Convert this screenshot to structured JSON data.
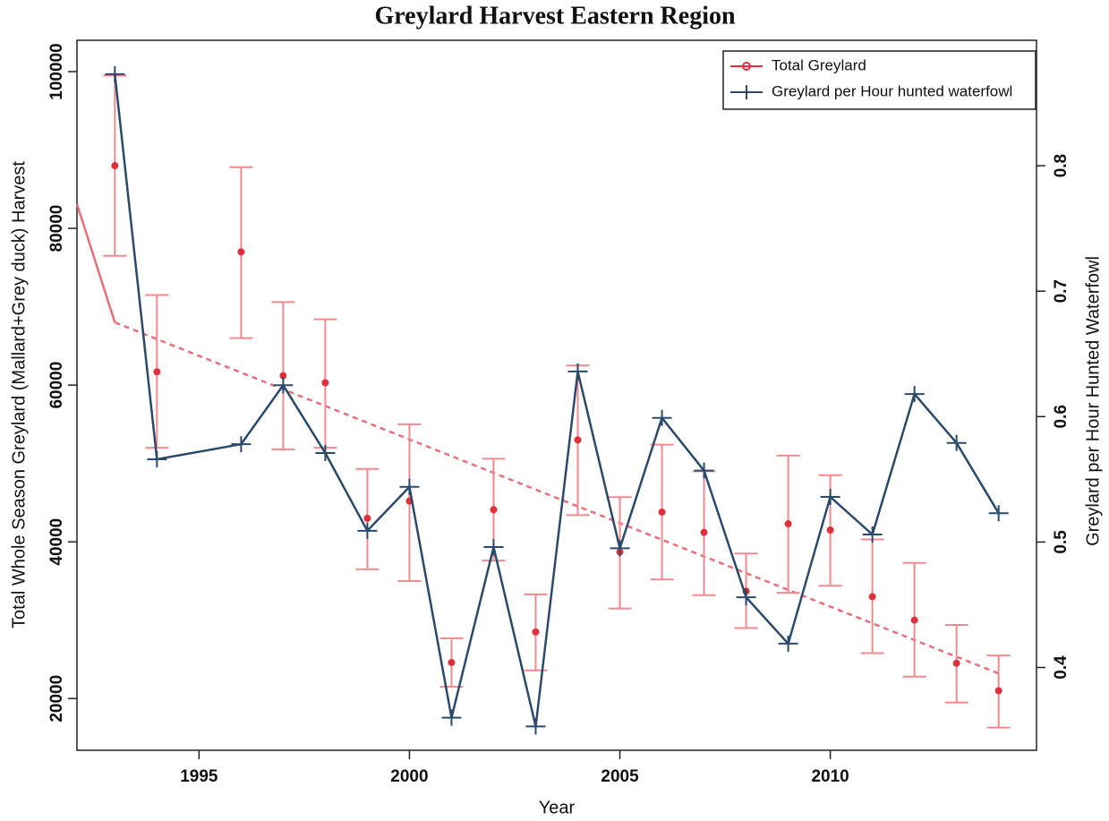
{
  "chart_data": {
    "type": "line",
    "title": "Greylard Harvest Eastern Region",
    "x_label": "Year",
    "y_label": "Total Whole Season Greylard (Mallard+Grey duck) Harvest",
    "y2_label": "Greylard per Hour Hunted Waterfowl",
    "x": [
      1993,
      1994,
      1996,
      1997,
      1998,
      1999,
      2000,
      2001,
      2002,
      2003,
      2004,
      2005,
      2006,
      2007,
      2008,
      2009,
      2010,
      2011,
      2012,
      2013,
      2014
    ],
    "series": [
      {
        "name": "Total Greylard",
        "color": "#e0303a",
        "values": [
          88000,
          61700,
          77000,
          61200,
          60300,
          43000,
          45200,
          24600,
          44100,
          28500,
          53000,
          38700,
          43800,
          41200,
          33700,
          42300,
          41500,
          33000,
          30000,
          24500,
          21000
        ],
        "lower": [
          76500,
          52000,
          66000,
          51800,
          52000,
          36500,
          35000,
          21500,
          37600,
          23600,
          43400,
          31500,
          35200,
          33200,
          29000,
          33500,
          34400,
          25800,
          22800,
          19500,
          16300
        ],
        "upper": [
          99500,
          71500,
          87800,
          70600,
          68400,
          49300,
          55000,
          27700,
          50600,
          33300,
          62500,
          45700,
          52400,
          49000,
          38500,
          51000,
          48500,
          40300,
          37300,
          29400,
          25500
        ]
      },
      {
        "name": "Greylard per Hour hunted waterfowl",
        "color": "#2b4a6b",
        "axis": "y2",
        "values": [
          0.873,
          0.566,
          0.578,
          0.625,
          0.571,
          0.509,
          0.544,
          0.36,
          0.496,
          0.353,
          0.636,
          0.495,
          0.599,
          0.557,
          0.456,
          0.419,
          0.536,
          0.506,
          0.618,
          0.579,
          0.523
        ]
      }
    ],
    "trend": {
      "color": "#e8707a",
      "x": [
        1992.1,
        1993,
        2014
      ],
      "values": [
        83100,
        68000,
        23200
      ]
    },
    "xlim": [
      1992.1,
      2014.9
    ],
    "xticks": [
      1995,
      2000,
      2005,
      2010
    ],
    "ylim": [
      13400,
      104000
    ],
    "yticks": [
      20000,
      40000,
      60000,
      80000,
      100000
    ],
    "y2lim": [
      0.334,
      0.9
    ],
    "y2ticks": [
      0.4,
      0.5,
      0.6,
      0.7,
      0.8
    ],
    "legend": "upper right",
    "grid": false
  }
}
